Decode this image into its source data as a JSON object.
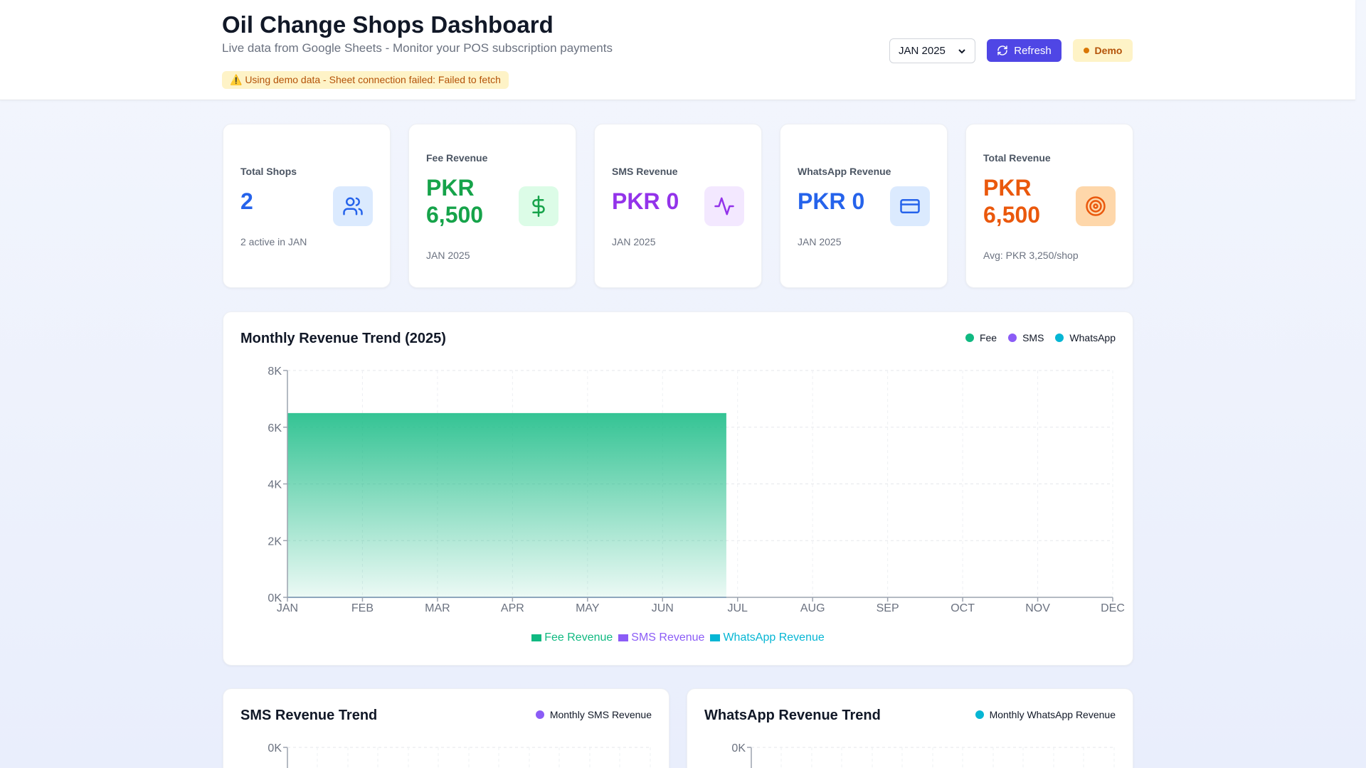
{
  "header": {
    "title": "Oil Change Shops Dashboard",
    "subtitle": "Live data from Google Sheets - Monitor your POS subscription payments",
    "warning": "⚠️ Using demo data - Sheet connection failed: Failed to fetch",
    "month_select": "JAN 2025",
    "refresh_label": "Refresh",
    "demo_label": "Demo"
  },
  "cards": [
    {
      "label": "Total Shops",
      "value": "2",
      "sub": "2 active in JAN",
      "icon": "users-icon",
      "color": "#2563eb",
      "bg": "#dbeafe"
    },
    {
      "label": "Fee Revenue",
      "value": "PKR 6,500",
      "sub": "JAN 2025",
      "icon": "dollar-icon",
      "color": "#16a34a",
      "bg": "#dcfce7"
    },
    {
      "label": "SMS Revenue",
      "value": "PKR 0",
      "sub": "JAN 2025",
      "icon": "activity-icon",
      "color": "#9333ea",
      "bg": "#f3e8ff"
    },
    {
      "label": "WhatsApp Revenue",
      "value": "PKR 0",
      "sub": "JAN 2025",
      "icon": "credit-card-icon",
      "color": "#2563eb",
      "bg": "#dbeafe"
    },
    {
      "label": "Total Revenue",
      "value": "PKR 6,500",
      "sub": "Avg: PKR 3,250/shop",
      "icon": "target-icon",
      "color": "#ea580c",
      "bg": "#fed7aa"
    }
  ],
  "trend": {
    "title": "Monthly Revenue Trend (2025)",
    "legend": [
      "Fee",
      "SMS",
      "WhatsApp"
    ],
    "bottom_legend": [
      "Fee Revenue",
      "SMS Revenue",
      "WhatsApp Revenue"
    ]
  },
  "sms_panel": {
    "title": "SMS Revenue Trend",
    "legend": "Monthly SMS Revenue",
    "y_tick": "0K"
  },
  "wa_panel": {
    "title": "WhatsApp Revenue Trend",
    "legend": "Monthly WhatsApp Revenue",
    "y_tick": "0K"
  },
  "colors": {
    "fee": "#10b981",
    "sms": "#8b5cf6",
    "whatsapp": "#06b6d4",
    "accent": "#4f46e5"
  },
  "chart_data": {
    "type": "area",
    "title": "Monthly Revenue Trend (2025)",
    "categories": [
      "JAN",
      "FEB",
      "MAR",
      "APR",
      "MAY",
      "JUN",
      "JUL",
      "AUG",
      "SEP",
      "OCT",
      "NOV",
      "DEC"
    ],
    "series": [
      {
        "name": "Fee Revenue",
        "values": [
          6500,
          6500,
          6500,
          6500,
          6500,
          6500,
          null,
          null,
          null,
          null,
          null,
          null
        ]
      },
      {
        "name": "SMS Revenue",
        "values": [
          0,
          0,
          0,
          0,
          0,
          0,
          null,
          null,
          null,
          null,
          null,
          null
        ]
      },
      {
        "name": "WhatsApp Revenue",
        "values": [
          0,
          0,
          0,
          0,
          0,
          0,
          null,
          null,
          null,
          null,
          null,
          null
        ]
      }
    ],
    "y_ticks": [
      "0K",
      "2K",
      "4K",
      "6K",
      "8K"
    ],
    "ylim": [
      0,
      8000
    ],
    "grid": true,
    "legend": "top-right"
  }
}
